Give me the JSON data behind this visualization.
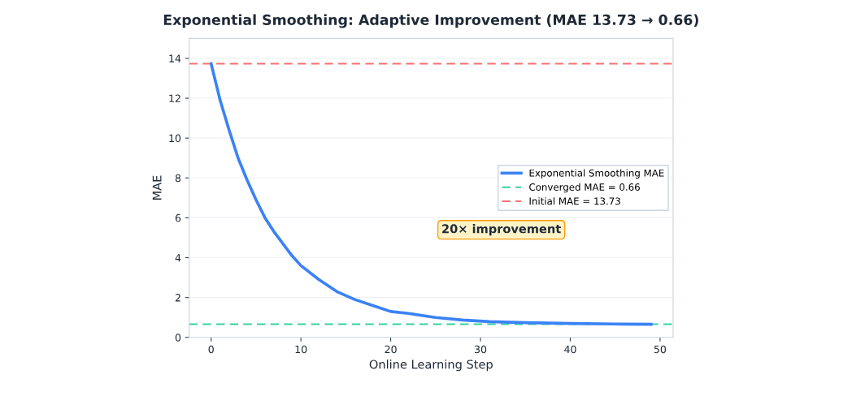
{
  "chart_data": {
    "type": "line",
    "title": "Exponential Smoothing: Adaptive Improvement (MAE 13.73 → 0.66)",
    "xlabel": "Online Learning Step",
    "ylabel": "MAE",
    "series": [
      {
        "name": "Exponential Smoothing MAE",
        "color": "#3b82f6",
        "x": [
          0,
          1,
          2,
          3,
          4,
          5,
          6,
          7,
          8,
          9,
          10,
          12,
          14,
          16,
          18,
          20,
          22,
          25,
          28,
          31,
          35,
          40,
          45,
          49
        ],
        "values": [
          13.73,
          11.9,
          10.4,
          9.0,
          7.9,
          6.9,
          6.0,
          5.3,
          4.7,
          4.1,
          3.6,
          2.9,
          2.3,
          1.9,
          1.6,
          1.3,
          1.2,
          1.0,
          0.87,
          0.79,
          0.74,
          0.7,
          0.67,
          0.66
        ]
      }
    ],
    "ref_lines": [
      {
        "axis": "y",
        "value": 0.66,
        "label": "Converged MAE = 0.66",
        "color": "#34d399",
        "line_style": "dashed"
      },
      {
        "axis": "y",
        "value": 13.73,
        "label": "Initial MAE = 13.73",
        "color": "#f87171",
        "line_style": "dashed"
      }
    ],
    "annotations": [
      "20× improvement"
    ],
    "xlim": [
      -2.45,
      51.45
    ],
    "xticks": [
      0,
      10,
      20,
      30,
      40,
      50
    ],
    "ylim": [
      0,
      15
    ],
    "yticks": [
      0,
      2,
      4,
      6,
      8,
      10,
      12,
      14
    ],
    "grid": "y",
    "legend": "center right",
    "line_style": "solid",
    "marker": "none"
  }
}
